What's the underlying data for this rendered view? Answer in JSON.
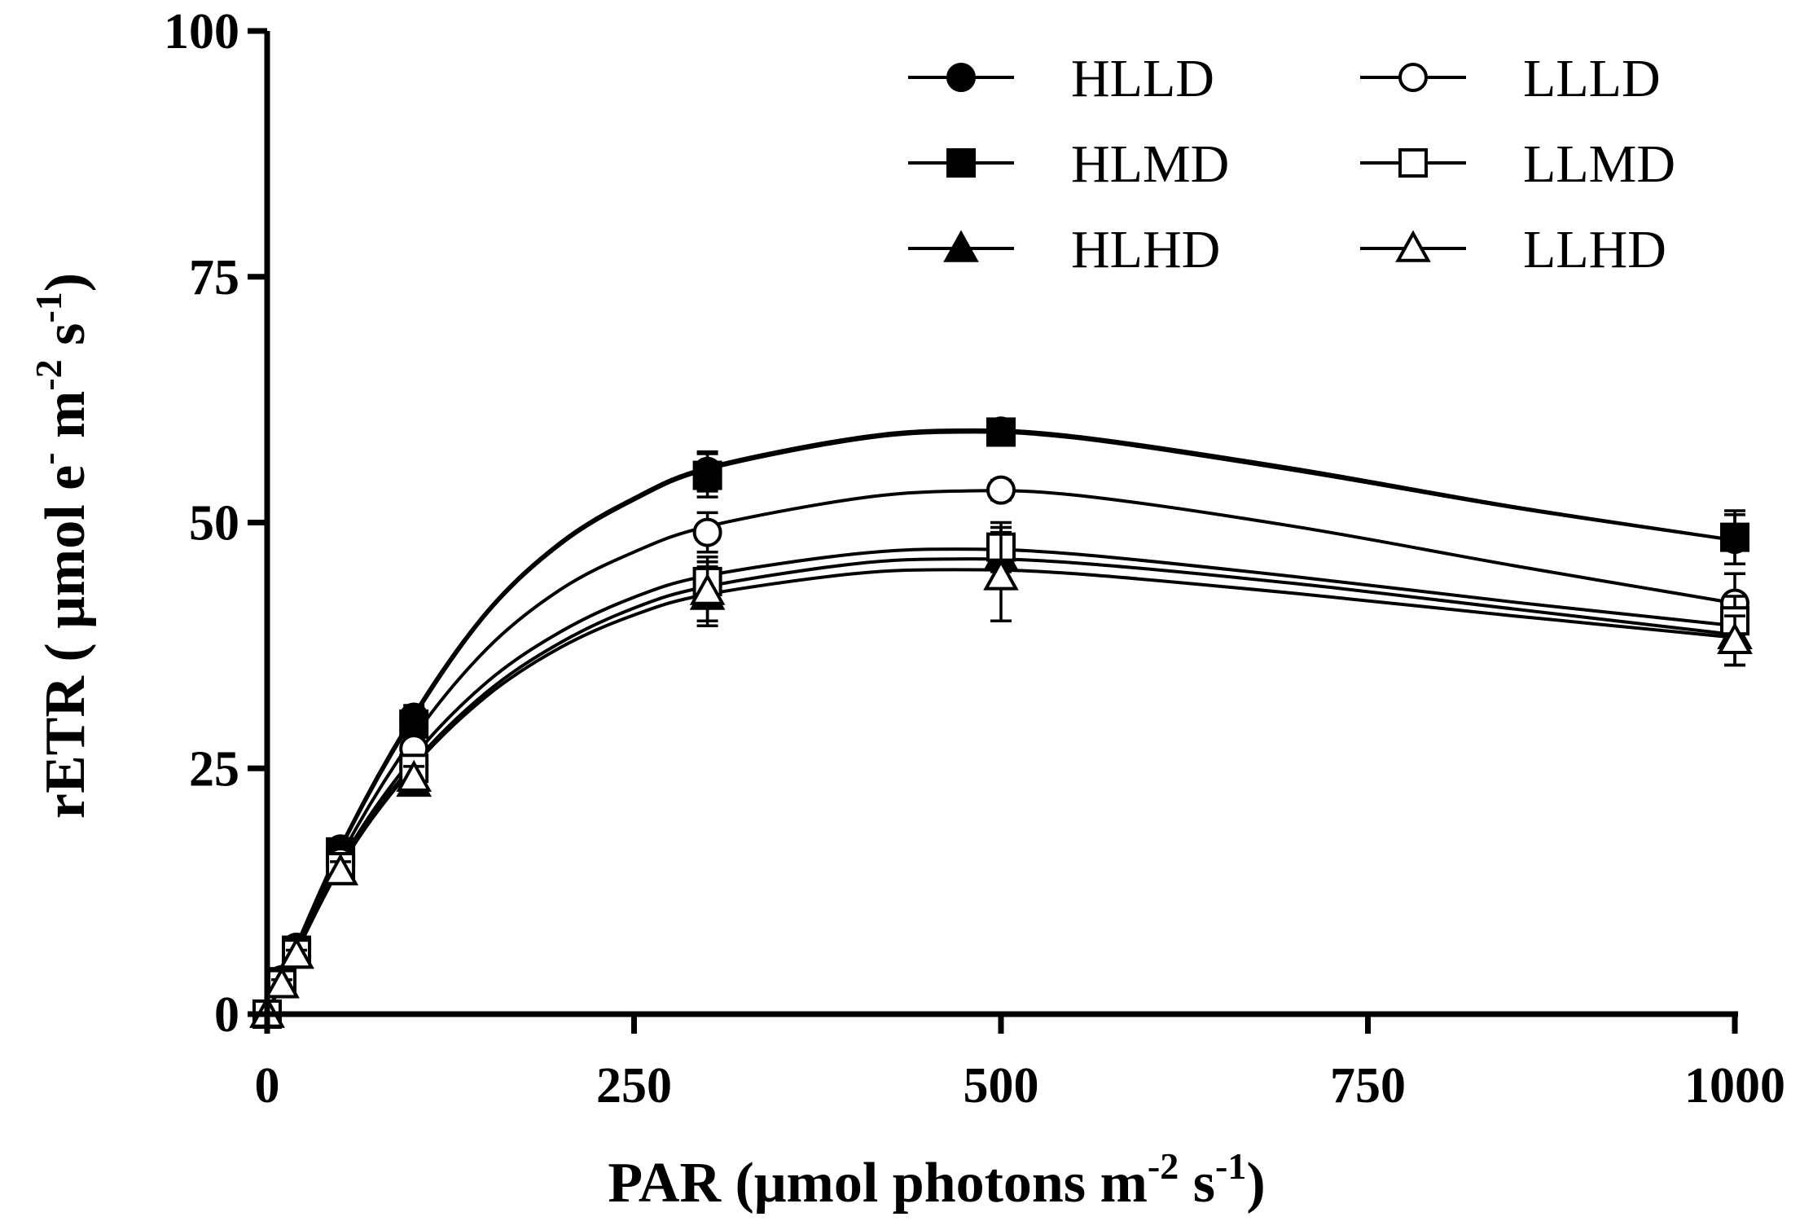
{
  "chart_data": {
    "type": "line",
    "xlabel": {
      "main": "PAR (μmol photons m",
      "sup1": "-2",
      "mid": " s",
      "sup2": "-1",
      "end": ")"
    },
    "ylabel": {
      "main": "rETR ( μmol e",
      "sup1": "-",
      "mid": " m",
      "sup2": "-2",
      "mid2": " s",
      "sup3": "-1",
      "end": ")"
    },
    "xlim": [
      0,
      1000
    ],
    "ylim": [
      0,
      100
    ],
    "xticks": [
      "0",
      "250",
      "500",
      "750",
      "1000"
    ],
    "yticks": [
      "0",
      "25",
      "50",
      "75",
      "100"
    ],
    "x": [
      0,
      10,
      20,
      50,
      100,
      300,
      500,
      1000
    ],
    "legend_position": "top-right",
    "grid": false,
    "series": [
      {
        "name": "HLLD",
        "marker": "circle",
        "filled": true,
        "values": [
          0,
          3.5,
          6.8,
          16.8,
          30.2,
          55.2,
          59.3,
          48.3
        ],
        "errors": [
          0,
          0.5,
          0.5,
          1.0,
          1.2,
          2.0,
          1.0,
          2.5
        ],
        "curve": [
          [
            0,
            0
          ],
          [
            50,
            17
          ],
          [
            100,
            30.5
          ],
          [
            150,
            41
          ],
          [
            200,
            48
          ],
          [
            250,
            52.5
          ],
          [
            300,
            55.6
          ],
          [
            400,
            58.6
          ],
          [
            470,
            59.4
          ],
          [
            550,
            58.8
          ],
          [
            700,
            55.5
          ],
          [
            850,
            51.6
          ],
          [
            1000,
            48.2
          ]
        ]
      },
      {
        "name": "HLMD",
        "marker": "square",
        "filled": true,
        "values": [
          0,
          3.3,
          6.5,
          16.5,
          29.5,
          54.8,
          59.2,
          48.5
        ],
        "errors": [
          0,
          0.5,
          0.5,
          1.0,
          1.2,
          2.2,
          1.0,
          2.7
        ],
        "curve": [
          [
            0,
            0
          ],
          [
            50,
            16.8
          ],
          [
            100,
            30.2
          ],
          [
            150,
            40.8
          ],
          [
            200,
            47.8
          ],
          [
            250,
            52.3
          ],
          [
            300,
            55.4
          ],
          [
            400,
            58.4
          ],
          [
            470,
            59.2
          ],
          [
            550,
            58.6
          ],
          [
            700,
            55.3
          ],
          [
            850,
            51.5
          ],
          [
            1000,
            48.2
          ]
        ]
      },
      {
        "name": "HLHD",
        "marker": "triangle",
        "filled": true,
        "values": [
          0,
          3.0,
          6.0,
          14.5,
          23.5,
          42.5,
          46.5,
          38.5
        ],
        "errors": [
          0,
          0.5,
          0.5,
          1.0,
          1.2,
          3.0,
          3.0,
          3.0
        ],
        "curve": [
          [
            0,
            0
          ],
          [
            50,
            15.2
          ],
          [
            100,
            25.5
          ],
          [
            150,
            32.8
          ],
          [
            200,
            37.8
          ],
          [
            250,
            41.3
          ],
          [
            300,
            43.5
          ],
          [
            400,
            45.8
          ],
          [
            470,
            46.3
          ],
          [
            550,
            45.9
          ],
          [
            700,
            43.8
          ],
          [
            850,
            41.2
          ],
          [
            1000,
            38.6
          ]
        ]
      },
      {
        "name": "LLLD",
        "marker": "circle",
        "filled": false,
        "values": [
          0,
          3.2,
          6.3,
          15.5,
          27.0,
          49.0,
          53.3,
          41.8
        ],
        "errors": [
          0,
          0.5,
          0.5,
          1.0,
          1.2,
          2.0,
          1.0,
          3.0
        ],
        "curve": [
          [
            0,
            0
          ],
          [
            50,
            16
          ],
          [
            100,
            28.2
          ],
          [
            150,
            37.2
          ],
          [
            200,
            43.2
          ],
          [
            250,
            47
          ],
          [
            300,
            49.6
          ],
          [
            400,
            52.4
          ],
          [
            470,
            53.2
          ],
          [
            550,
            52.8
          ],
          [
            700,
            49.6
          ],
          [
            850,
            45.6
          ],
          [
            1000,
            41.8
          ]
        ]
      },
      {
        "name": "LLMD",
        "marker": "square",
        "filled": false,
        "values": [
          0,
          3.1,
          6.2,
          15.0,
          25.0,
          44.0,
          47.5,
          40.0
        ],
        "errors": [
          0,
          0.5,
          0.5,
          1.0,
          1.2,
          2.5,
          2.5,
          2.5
        ],
        "curve": [
          [
            0,
            0
          ],
          [
            50,
            15.4
          ],
          [
            100,
            26.2
          ],
          [
            150,
            33.8
          ],
          [
            200,
            38.9
          ],
          [
            250,
            42.4
          ],
          [
            300,
            44.6
          ],
          [
            400,
            46.8
          ],
          [
            470,
            47.3
          ],
          [
            550,
            46.8
          ],
          [
            700,
            44.5
          ],
          [
            850,
            41.9
          ],
          [
            1000,
            39.5
          ]
        ]
      },
      {
        "name": "LLHD",
        "marker": "triangle",
        "filled": false,
        "values": [
          0,
          3.0,
          6.0,
          14.5,
          24.0,
          43.0,
          44.5,
          38.0
        ],
        "errors": [
          0,
          0.5,
          0.5,
          1.0,
          1.2,
          3.0,
          4.5,
          2.5
        ],
        "curve": [
          [
            0,
            0
          ],
          [
            50,
            15
          ],
          [
            100,
            25.2
          ],
          [
            150,
            32.4
          ],
          [
            200,
            37.3
          ],
          [
            250,
            40.6
          ],
          [
            300,
            42.7
          ],
          [
            400,
            44.8
          ],
          [
            470,
            45.2
          ],
          [
            550,
            44.8
          ],
          [
            700,
            42.8
          ],
          [
            850,
            40.5
          ],
          [
            1000,
            38.3
          ]
        ]
      }
    ]
  }
}
